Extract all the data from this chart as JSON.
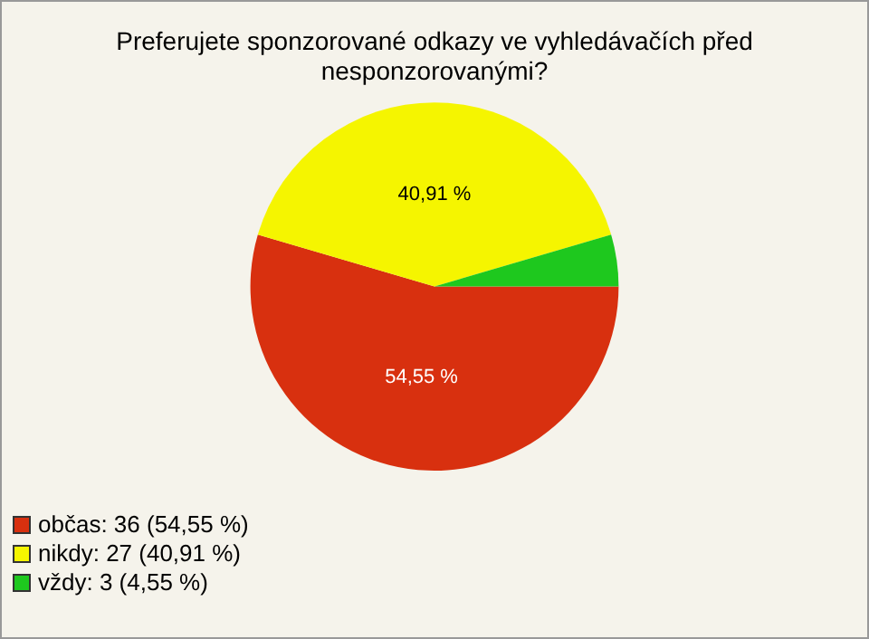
{
  "chart_data": {
    "type": "pie",
    "title": "Preferujete sponzorované odkazy ve vyhledávačích před nesponzorovanými?",
    "categories": [
      "občas: 36 (54,55 %)",
      "nikdy: 27 (40,91 %)",
      "vždy: 3 (4,55 %)"
    ],
    "values": [
      54.55,
      40.91,
      4.55
    ],
    "colors": [
      "#d8300f",
      "#f5f500",
      "#1ec81e"
    ],
    "value_labels": [
      "54,55 %",
      "40,91 %",
      null
    ],
    "legend": "bottom left"
  }
}
